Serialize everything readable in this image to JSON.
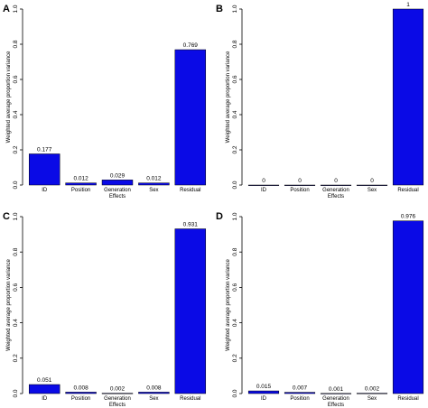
{
  "colors": {
    "bar": "#0a0ae6",
    "axis": "#000000",
    "background": "#ffffff"
  },
  "chart_data": [
    {
      "panel": "A",
      "type": "bar",
      "categories": [
        "ID",
        "Position",
        "Generation",
        "Sex",
        "Residual"
      ],
      "values": [
        0.177,
        0.012,
        0.029,
        0.012,
        0.769
      ],
      "data_labels": [
        "0.177",
        "0.012",
        "0.029",
        "0.012",
        "0.769"
      ],
      "xlabel": "Effects",
      "ylabel": "Weighted average proportion variance",
      "ylim": [
        0,
        1
      ],
      "yticks": [
        "0.0",
        "0.2",
        "0.4",
        "0.6",
        "0.8",
        "1.0"
      ],
      "grid": false
    },
    {
      "panel": "B",
      "type": "bar",
      "categories": [
        "ID",
        "Position",
        "Generation",
        "Sex",
        "Residual"
      ],
      "values": [
        0,
        0,
        0,
        0,
        1
      ],
      "data_labels": [
        "0",
        "0",
        "0",
        "0",
        "1"
      ],
      "xlabel": "Effects",
      "ylabel": "Weighted average proportion variance",
      "ylim": [
        0,
        1
      ],
      "yticks": [
        "0.0",
        "0.2",
        "0.4",
        "0.6",
        "0.8",
        "1.0"
      ],
      "grid": false
    },
    {
      "panel": "C",
      "type": "bar",
      "categories": [
        "ID",
        "Position",
        "Generation",
        "Sex",
        "Residual"
      ],
      "values": [
        0.051,
        0.008,
        0.002,
        0.008,
        0.931
      ],
      "data_labels": [
        "0.051",
        "0.008",
        "0.002",
        "0.008",
        "0.931"
      ],
      "xlabel": "Effects",
      "ylabel": "Weighted average proportion variance",
      "ylim": [
        0,
        1
      ],
      "yticks": [
        "0.0",
        "0.2",
        "0.4",
        "0.6",
        "0.8",
        "1.0"
      ],
      "grid": false
    },
    {
      "panel": "D",
      "type": "bar",
      "categories": [
        "ID",
        "Position",
        "Generation",
        "Sex",
        "Residual"
      ],
      "values": [
        0.015,
        0.007,
        0.001,
        0.002,
        0.976
      ],
      "data_labels": [
        "0.015",
        "0.007",
        "0.001",
        "0.002",
        "0.976"
      ],
      "xlabel": "Effects",
      "ylabel": "Weighted average proportion variance",
      "ylim": [
        0,
        1
      ],
      "yticks": [
        "0.0",
        "0.2",
        "0.4",
        "0.6",
        "0.8",
        "1.0"
      ],
      "grid": false
    }
  ]
}
